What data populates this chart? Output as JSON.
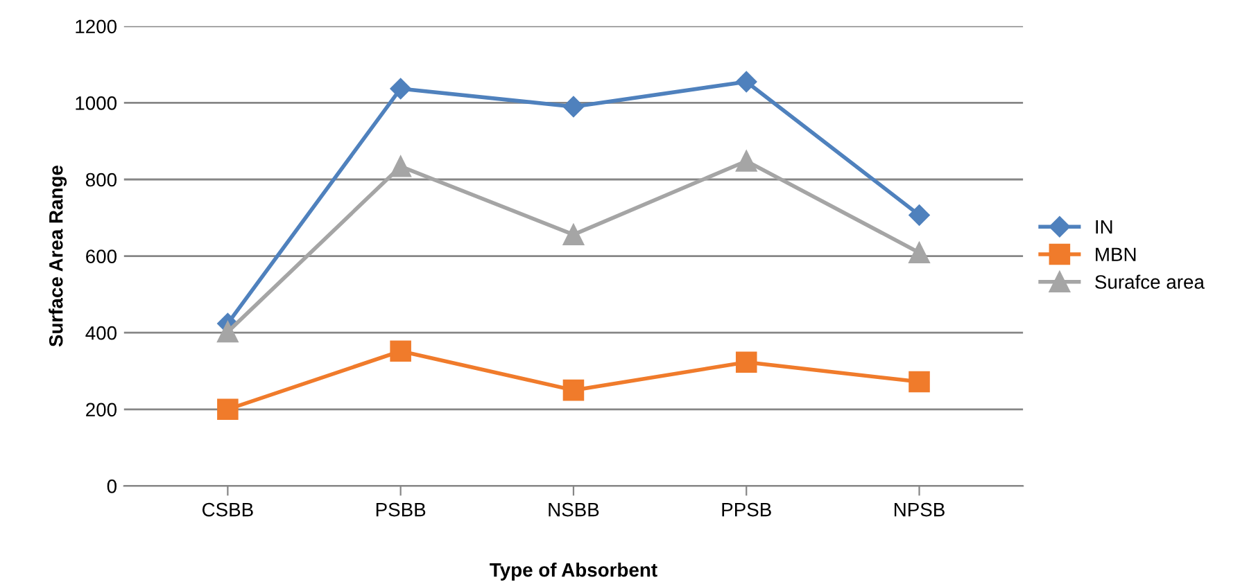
{
  "chart_data": {
    "type": "line",
    "xlabel": "Type of Absorbent",
    "ylabel": "Surface Area Range",
    "categories": [
      "CSBB",
      "PSBB",
      "NSBB",
      "PPSB",
      "NPSB"
    ],
    "series": [
      {
        "name": "IN",
        "color": "#4f81bd",
        "marker": "diamond",
        "values": [
          424,
          1037,
          990,
          1055,
          707
        ]
      },
      {
        "name": "MBN",
        "color": "#f07b2b",
        "marker": "square",
        "values": [
          200,
          352,
          250,
          323,
          272
        ]
      },
      {
        "name": "Surafce area",
        "color": "#a5a5a5",
        "marker": "triangle",
        "values": [
          402,
          834,
          656,
          848,
          609
        ]
      }
    ],
    "ylim": [
      0,
      1200
    ],
    "yticks": [
      0,
      200,
      400,
      600,
      800,
      1000,
      1200
    ],
    "grid": "y",
    "legend": "right",
    "line_style": "solid"
  }
}
